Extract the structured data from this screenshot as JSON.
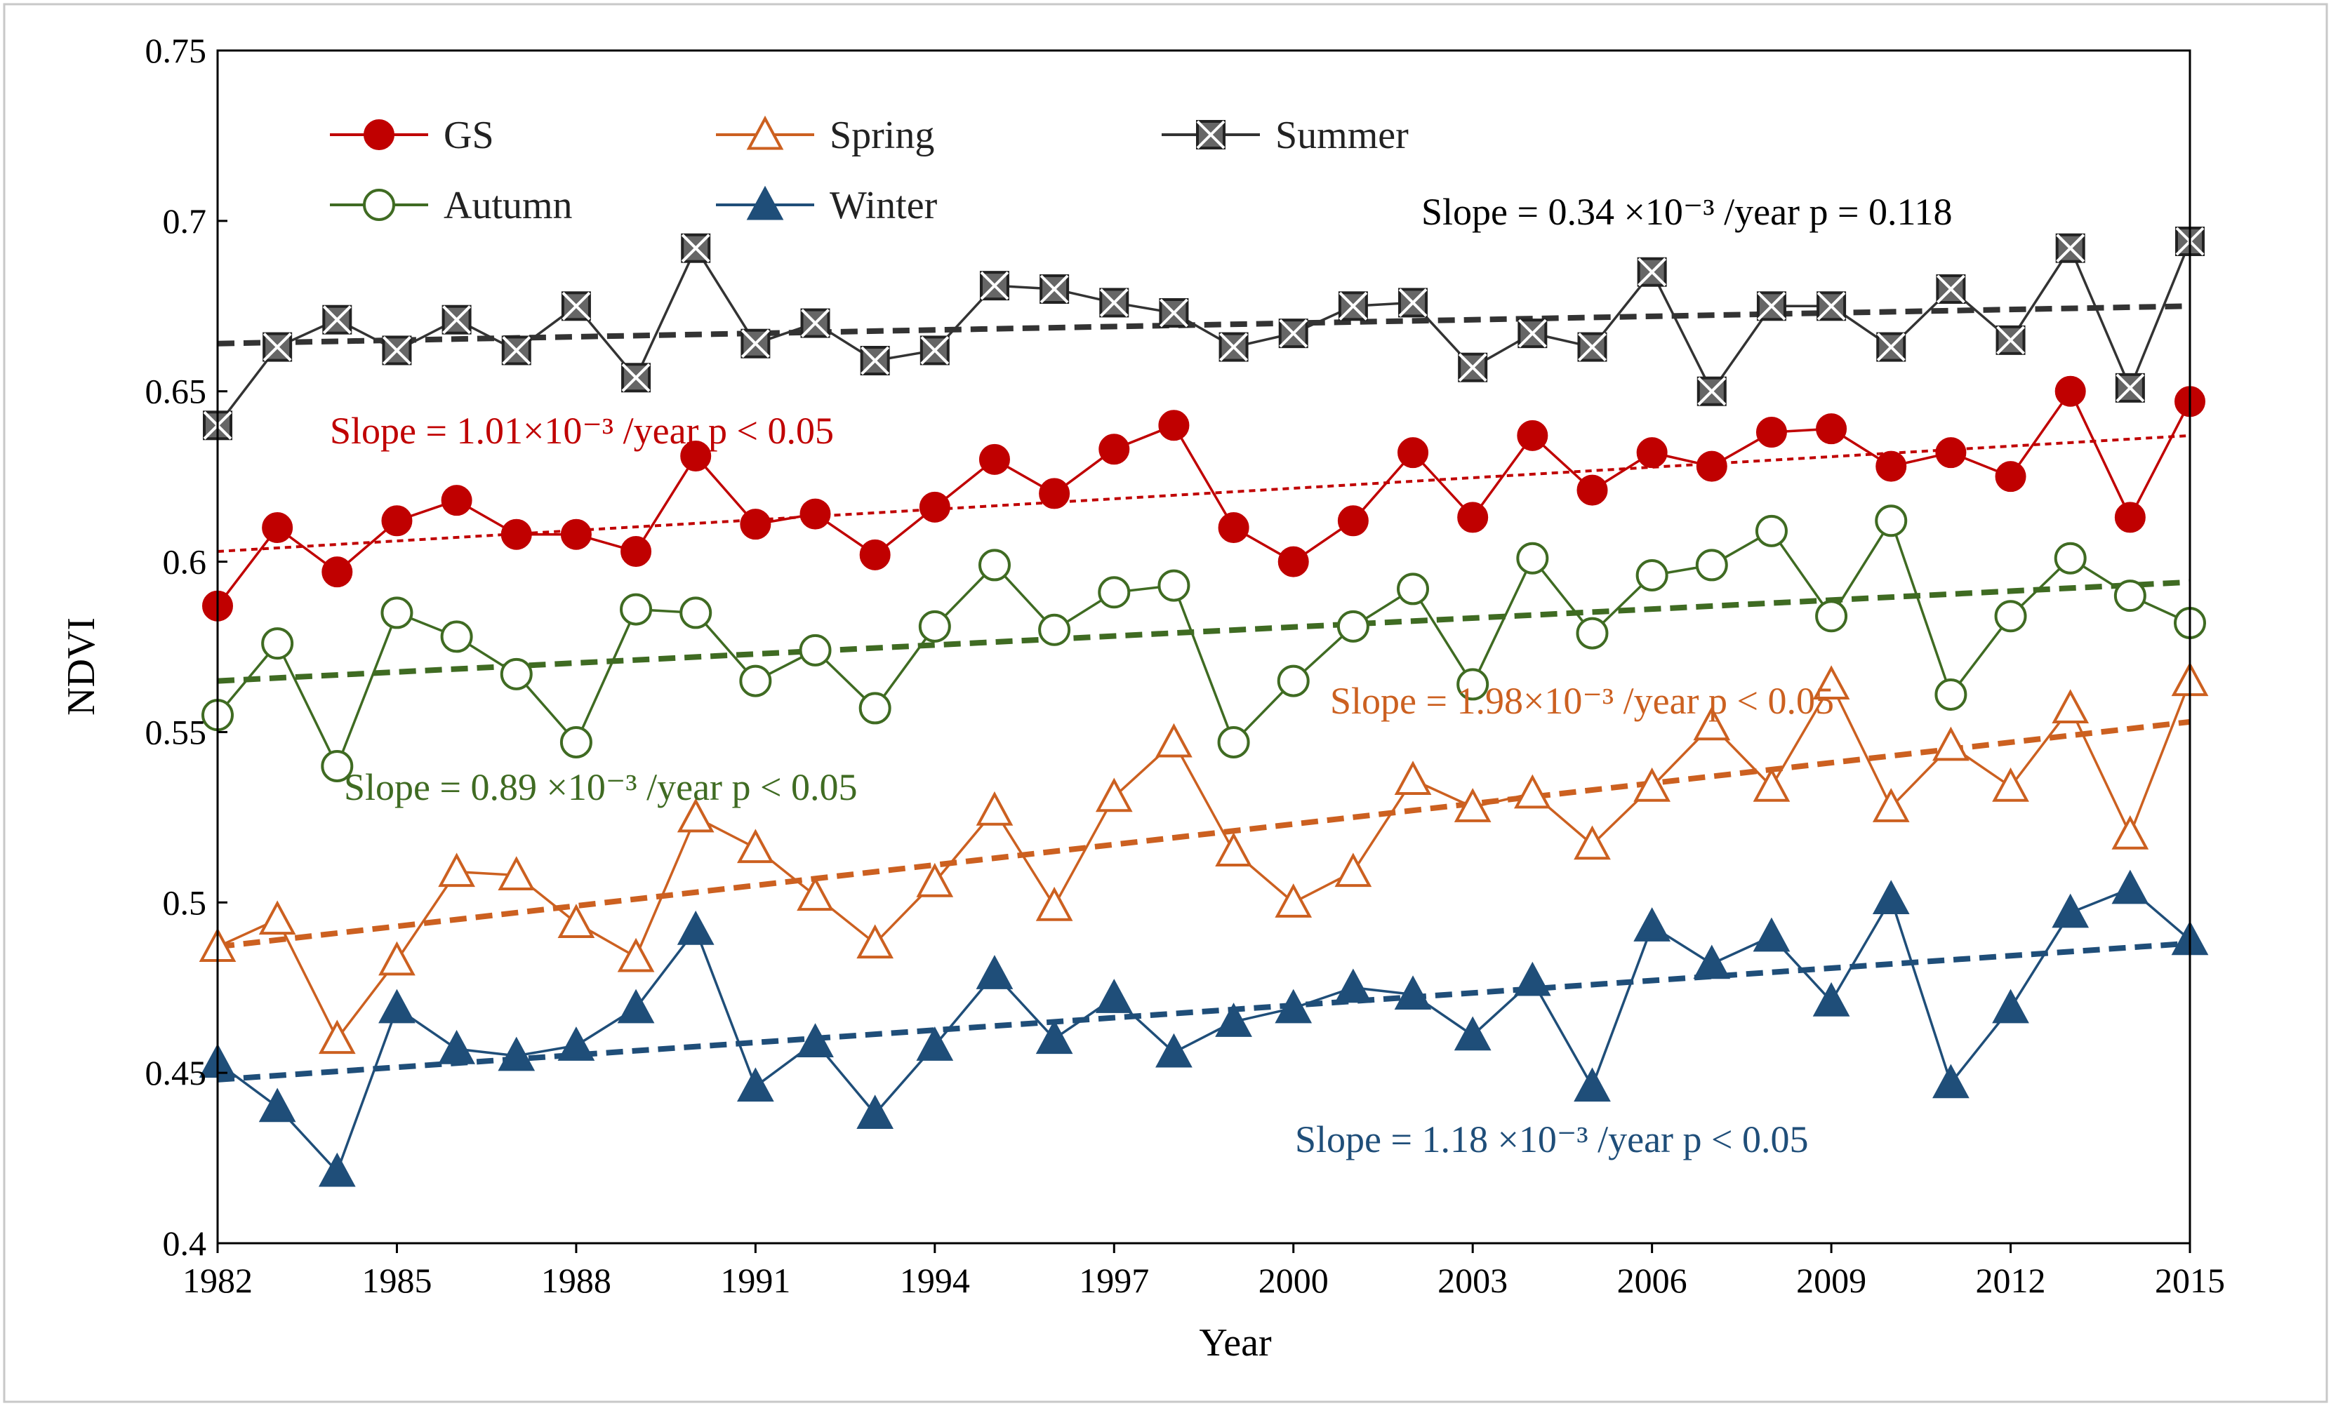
{
  "chart_data": {
    "type": "line",
    "xlabel": "Year",
    "ylabel": "NDVI",
    "xlim": [
      1982,
      2015
    ],
    "ylim": [
      0.4,
      0.75
    ],
    "x_ticks": [
      1982,
      1985,
      1988,
      1991,
      1994,
      1997,
      2000,
      2003,
      2006,
      2009,
      2012,
      2015
    ],
    "y_ticks": [
      0.4,
      0.45,
      0.5,
      0.55,
      0.6,
      0.65,
      0.7,
      0.75
    ],
    "y_tick_labels": [
      "0.4",
      "0.45",
      "0.5",
      "0.55",
      "0.6",
      "0.65",
      "0.7",
      "0.75"
    ],
    "grid": false,
    "legend_position": "top-left",
    "years": [
      1982,
      1983,
      1984,
      1985,
      1986,
      1987,
      1988,
      1989,
      1990,
      1991,
      1992,
      1993,
      1994,
      1995,
      1996,
      1997,
      1998,
      1999,
      2000,
      2001,
      2002,
      2003,
      2004,
      2005,
      2006,
      2007,
      2008,
      2009,
      2010,
      2011,
      2012,
      2013,
      2014,
      2015
    ],
    "series": [
      {
        "name": "GS",
        "color": "#c00000",
        "marker": "filled-circle",
        "values": [
          0.587,
          0.61,
          0.597,
          0.612,
          0.618,
          0.608,
          0.608,
          0.603,
          0.631,
          0.611,
          0.614,
          0.602,
          0.616,
          0.63,
          0.62,
          0.633,
          0.64,
          0.61,
          0.6,
          0.612,
          0.632,
          0.613,
          0.637,
          0.621,
          0.632,
          0.628,
          0.638,
          0.639,
          0.628,
          0.632,
          0.625,
          0.65,
          0.613,
          0.647
        ],
        "trend": [
          0.603,
          0.637
        ],
        "trend_style": "dotted"
      },
      {
        "name": "Spring",
        "color": "#cc6020",
        "marker": "open-triangle",
        "values": [
          0.487,
          0.495,
          0.46,
          0.483,
          0.509,
          0.508,
          0.494,
          0.484,
          0.525,
          0.516,
          0.502,
          0.488,
          0.506,
          0.527,
          0.499,
          0.531,
          0.547,
          0.515,
          0.5,
          0.509,
          0.536,
          0.528,
          0.532,
          0.517,
          0.534,
          0.552,
          0.534,
          0.564,
          0.528,
          0.546,
          0.534,
          0.557,
          0.52,
          0.565
        ],
        "trend": [
          0.487,
          0.553
        ],
        "trend_style": "dashed"
      },
      {
        "name": "Summer",
        "color": "#333333",
        "marker": "crossed-square",
        "values": [
          0.64,
          0.663,
          0.671,
          0.662,
          0.671,
          0.662,
          0.675,
          0.654,
          0.692,
          0.664,
          0.67,
          0.659,
          0.662,
          0.681,
          0.68,
          0.676,
          0.673,
          0.663,
          0.667,
          0.675,
          0.676,
          0.657,
          0.667,
          0.663,
          0.685,
          0.65,
          0.675,
          0.675,
          0.663,
          0.68,
          0.665,
          0.692,
          0.651,
          0.694
        ],
        "trend": [
          0.664,
          0.675
        ],
        "trend_style": "dashed"
      },
      {
        "name": "Autumn",
        "color": "#3f6b22",
        "marker": "open-circle",
        "values": [
          0.555,
          0.576,
          0.54,
          0.585,
          0.578,
          0.567,
          0.547,
          0.586,
          0.585,
          0.565,
          0.574,
          0.557,
          0.581,
          0.599,
          0.58,
          0.591,
          0.593,
          0.547,
          0.565,
          0.581,
          0.592,
          0.564,
          0.601,
          0.579,
          0.596,
          0.599,
          0.609,
          0.584,
          0.612,
          0.561,
          0.584,
          0.601,
          0.59,
          0.582
        ],
        "trend": [
          0.565,
          0.594
        ],
        "trend_style": "dashed"
      },
      {
        "name": "Winter",
        "color": "#1f4e79",
        "marker": "filled-triangle",
        "values": [
          0.453,
          0.44,
          0.421,
          0.469,
          0.457,
          0.455,
          0.458,
          0.469,
          0.492,
          0.446,
          0.459,
          0.438,
          0.458,
          0.479,
          0.46,
          0.472,
          0.456,
          0.465,
          0.469,
          0.475,
          0.473,
          0.461,
          0.477,
          0.446,
          0.493,
          0.482,
          0.49,
          0.471,
          0.501,
          0.447,
          0.469,
          0.497,
          0.504,
          0.489
        ],
        "trend": [
          0.448,
          0.488
        ],
        "trend_style": "dashed"
      }
    ],
    "annotations": [
      {
        "series": "Summer",
        "color": "#000000",
        "text": "Slope = 0.34 ×10⁻³ /year    p = 0.118"
      },
      {
        "series": "GS",
        "color": "#c00000",
        "text": "Slope = 1.01×10⁻³ /year    p < 0.05"
      },
      {
        "series": "Spring",
        "color": "#cc6020",
        "text": "Slope = 1.98×10⁻³ /year    p < 0.05"
      },
      {
        "series": "Autumn",
        "color": "#3f6b22",
        "text": "Slope = 0.89 ×10⁻³ /year    p < 0.05"
      },
      {
        "series": "Winter",
        "color": "#1f4e79",
        "text": "Slope = 1.18 ×10⁻³ /year    p < 0.05"
      }
    ]
  }
}
